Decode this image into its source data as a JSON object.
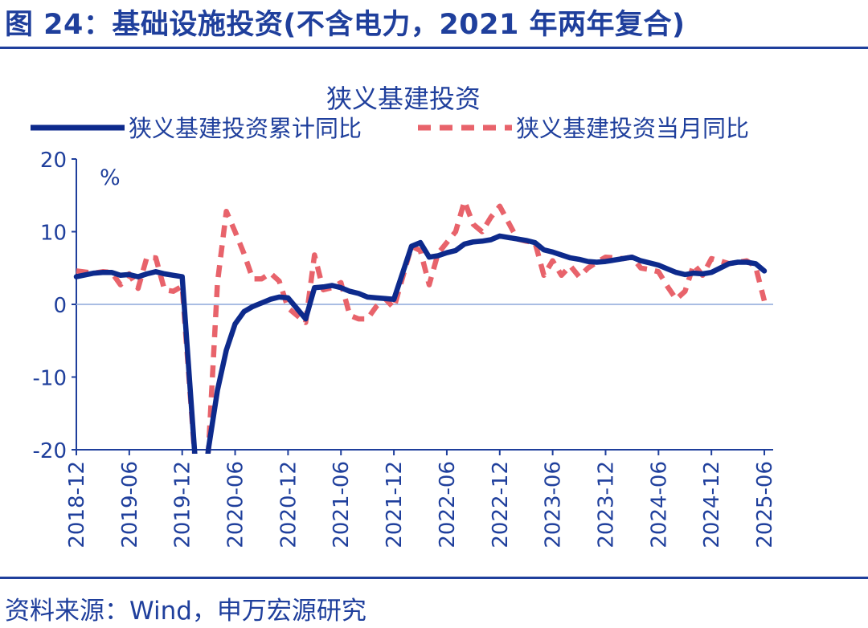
{
  "figure": {
    "title": "图 24：基础设施投资(不含电力，2021 年两年复合)",
    "source": "资料来源：Wind，申万宏源研究"
  },
  "chart_data": {
    "type": "line",
    "title": "狭义基建投资",
    "ylabel": "%",
    "ylim": [
      -20,
      20
    ],
    "yticks": [
      20,
      10,
      0,
      -10,
      -20
    ],
    "x_range": [
      "2018-12",
      "2025-07"
    ],
    "xticks": [
      "2018-12",
      "2019-06",
      "2019-12",
      "2020-06",
      "2020-12",
      "2021-06",
      "2021-12",
      "2022-06",
      "2022-12",
      "2023-06",
      "2023-12",
      "2024-06",
      "2024-12",
      "2025-06"
    ],
    "legend_position": "top",
    "grid": false,
    "series": [
      {
        "name": "狭义基建投资累计同比",
        "color": "#0d2a8c",
        "style": "solid",
        "points": [
          [
            "2018-12",
            3.8
          ],
          [
            "2019-02",
            4.3
          ],
          [
            "2019-03",
            4.4
          ],
          [
            "2019-04",
            4.4
          ],
          [
            "2019-05",
            4.0
          ],
          [
            "2019-06",
            4.1
          ],
          [
            "2019-07",
            3.8
          ],
          [
            "2019-08",
            4.2
          ],
          [
            "2019-09",
            4.5
          ],
          [
            "2019-10",
            4.2
          ],
          [
            "2019-11",
            4.0
          ],
          [
            "2019-12",
            3.8
          ],
          [
            "2020-02",
            -30.3
          ],
          [
            "2020-03",
            -19.7
          ],
          [
            "2020-04",
            -11.8
          ],
          [
            "2020-05",
            -6.3
          ],
          [
            "2020-06",
            -2.7
          ],
          [
            "2020-07",
            -1.0
          ],
          [
            "2020-08",
            -0.3
          ],
          [
            "2020-09",
            0.2
          ],
          [
            "2020-10",
            0.7
          ],
          [
            "2020-11",
            1.0
          ],
          [
            "2020-12",
            0.9
          ],
          [
            "2021-02",
            -2.0
          ],
          [
            "2021-03",
            2.3
          ],
          [
            "2021-04",
            2.4
          ],
          [
            "2021-05",
            2.6
          ],
          [
            "2021-06",
            2.3
          ],
          [
            "2021-07",
            1.8
          ],
          [
            "2021-08",
            1.5
          ],
          [
            "2021-09",
            1.0
          ],
          [
            "2021-10",
            0.9
          ],
          [
            "2021-11",
            0.8
          ],
          [
            "2021-12",
            0.7
          ],
          [
            "2022-02",
            8.0
          ],
          [
            "2022-03",
            8.5
          ],
          [
            "2022-04",
            6.5
          ],
          [
            "2022-05",
            6.7
          ],
          [
            "2022-06",
            7.1
          ],
          [
            "2022-07",
            7.4
          ],
          [
            "2022-08",
            8.3
          ],
          [
            "2022-09",
            8.6
          ],
          [
            "2022-10",
            8.7
          ],
          [
            "2022-11",
            8.9
          ],
          [
            "2022-12",
            9.4
          ],
          [
            "2023-02",
            9.0
          ],
          [
            "2023-03",
            8.8
          ],
          [
            "2023-04",
            8.5
          ],
          [
            "2023-05",
            7.5
          ],
          [
            "2023-06",
            7.2
          ],
          [
            "2023-07",
            6.8
          ],
          [
            "2023-08",
            6.4
          ],
          [
            "2023-09",
            6.2
          ],
          [
            "2023-10",
            5.9
          ],
          [
            "2023-11",
            5.8
          ],
          [
            "2023-12",
            5.9
          ],
          [
            "2024-02",
            6.3
          ],
          [
            "2024-03",
            6.5
          ],
          [
            "2024-04",
            6.0
          ],
          [
            "2024-05",
            5.7
          ],
          [
            "2024-06",
            5.4
          ],
          [
            "2024-07",
            4.9
          ],
          [
            "2024-08",
            4.4
          ],
          [
            "2024-09",
            4.1
          ],
          [
            "2024-10",
            4.3
          ],
          [
            "2024-11",
            4.2
          ],
          [
            "2024-12",
            4.4
          ],
          [
            "2025-02",
            5.6
          ],
          [
            "2025-03",
            5.8
          ],
          [
            "2025-04",
            5.8
          ],
          [
            "2025-05",
            5.6
          ],
          [
            "2025-06",
            4.6
          ]
        ]
      },
      {
        "name": "狭义基建投资当月同比",
        "color": "#e8636b",
        "style": "dashed",
        "points": [
          [
            "2018-12",
            4.6
          ],
          [
            "2019-02",
            4.3
          ],
          [
            "2019-03",
            4.5
          ],
          [
            "2019-04",
            4.4
          ],
          [
            "2019-05",
            2.7
          ],
          [
            "2019-06",
            4.2
          ],
          [
            "2019-07",
            2.2
          ],
          [
            "2019-08",
            6.5
          ],
          [
            "2019-09",
            6.4
          ],
          [
            "2019-10",
            2.0
          ],
          [
            "2019-11",
            1.8
          ],
          [
            "2019-12",
            2.5
          ],
          [
            "2020-02",
            -30.3
          ],
          [
            "2020-03",
            -19.7
          ],
          [
            "2020-04",
            3.0
          ],
          [
            "2020-05",
            12.8
          ],
          [
            "2020-06",
            10.0
          ],
          [
            "2020-07",
            7.0
          ],
          [
            "2020-08",
            3.5
          ],
          [
            "2020-09",
            3.5
          ],
          [
            "2020-10",
            4.3
          ],
          [
            "2020-11",
            3.2
          ],
          [
            "2020-12",
            -0.5
          ],
          [
            "2021-02",
            -2.5
          ],
          [
            "2021-03",
            6.8
          ],
          [
            "2021-04",
            2.0
          ],
          [
            "2021-05",
            2.3
          ],
          [
            "2021-06",
            3.0
          ],
          [
            "2021-07",
            -1.5
          ],
          [
            "2021-08",
            -2.0
          ],
          [
            "2021-09",
            -2.0
          ],
          [
            "2021-10",
            -0.3
          ],
          [
            "2021-11",
            0.8
          ],
          [
            "2021-12",
            -0.5
          ],
          [
            "2022-02",
            8.0
          ],
          [
            "2022-03",
            7.4
          ],
          [
            "2022-04",
            2.7
          ],
          [
            "2022-05",
            7.0
          ],
          [
            "2022-06",
            8.5
          ],
          [
            "2022-07",
            10.0
          ],
          [
            "2022-08",
            14.2
          ],
          [
            "2022-09",
            11.0
          ],
          [
            "2022-10",
            10.0
          ],
          [
            "2022-11",
            12.0
          ],
          [
            "2022-12",
            13.5
          ],
          [
            "2023-02",
            9.0
          ],
          [
            "2023-03",
            8.7
          ],
          [
            "2023-04",
            8.5
          ],
          [
            "2023-05",
            4.0
          ],
          [
            "2023-06",
            6.0
          ],
          [
            "2023-07",
            4.0
          ],
          [
            "2023-08",
            5.3
          ],
          [
            "2023-09",
            3.8
          ],
          [
            "2023-10",
            5.0
          ],
          [
            "2023-11",
            5.8
          ],
          [
            "2023-12",
            6.5
          ],
          [
            "2024-02",
            6.3
          ],
          [
            "2024-03",
            6.5
          ],
          [
            "2024-04",
            5.0
          ],
          [
            "2024-05",
            4.8
          ],
          [
            "2024-06",
            4.5
          ],
          [
            "2024-07",
            2.5
          ],
          [
            "2024-08",
            0.7
          ],
          [
            "2024-09",
            1.8
          ],
          [
            "2024-10",
            5.5
          ],
          [
            "2024-11",
            4.0
          ],
          [
            "2024-12",
            6.3
          ],
          [
            "2025-02",
            5.6
          ],
          [
            "2025-03",
            5.8
          ],
          [
            "2025-04",
            6.0
          ],
          [
            "2025-05",
            5.2
          ],
          [
            "2025-06",
            0.5
          ]
        ]
      }
    ]
  }
}
